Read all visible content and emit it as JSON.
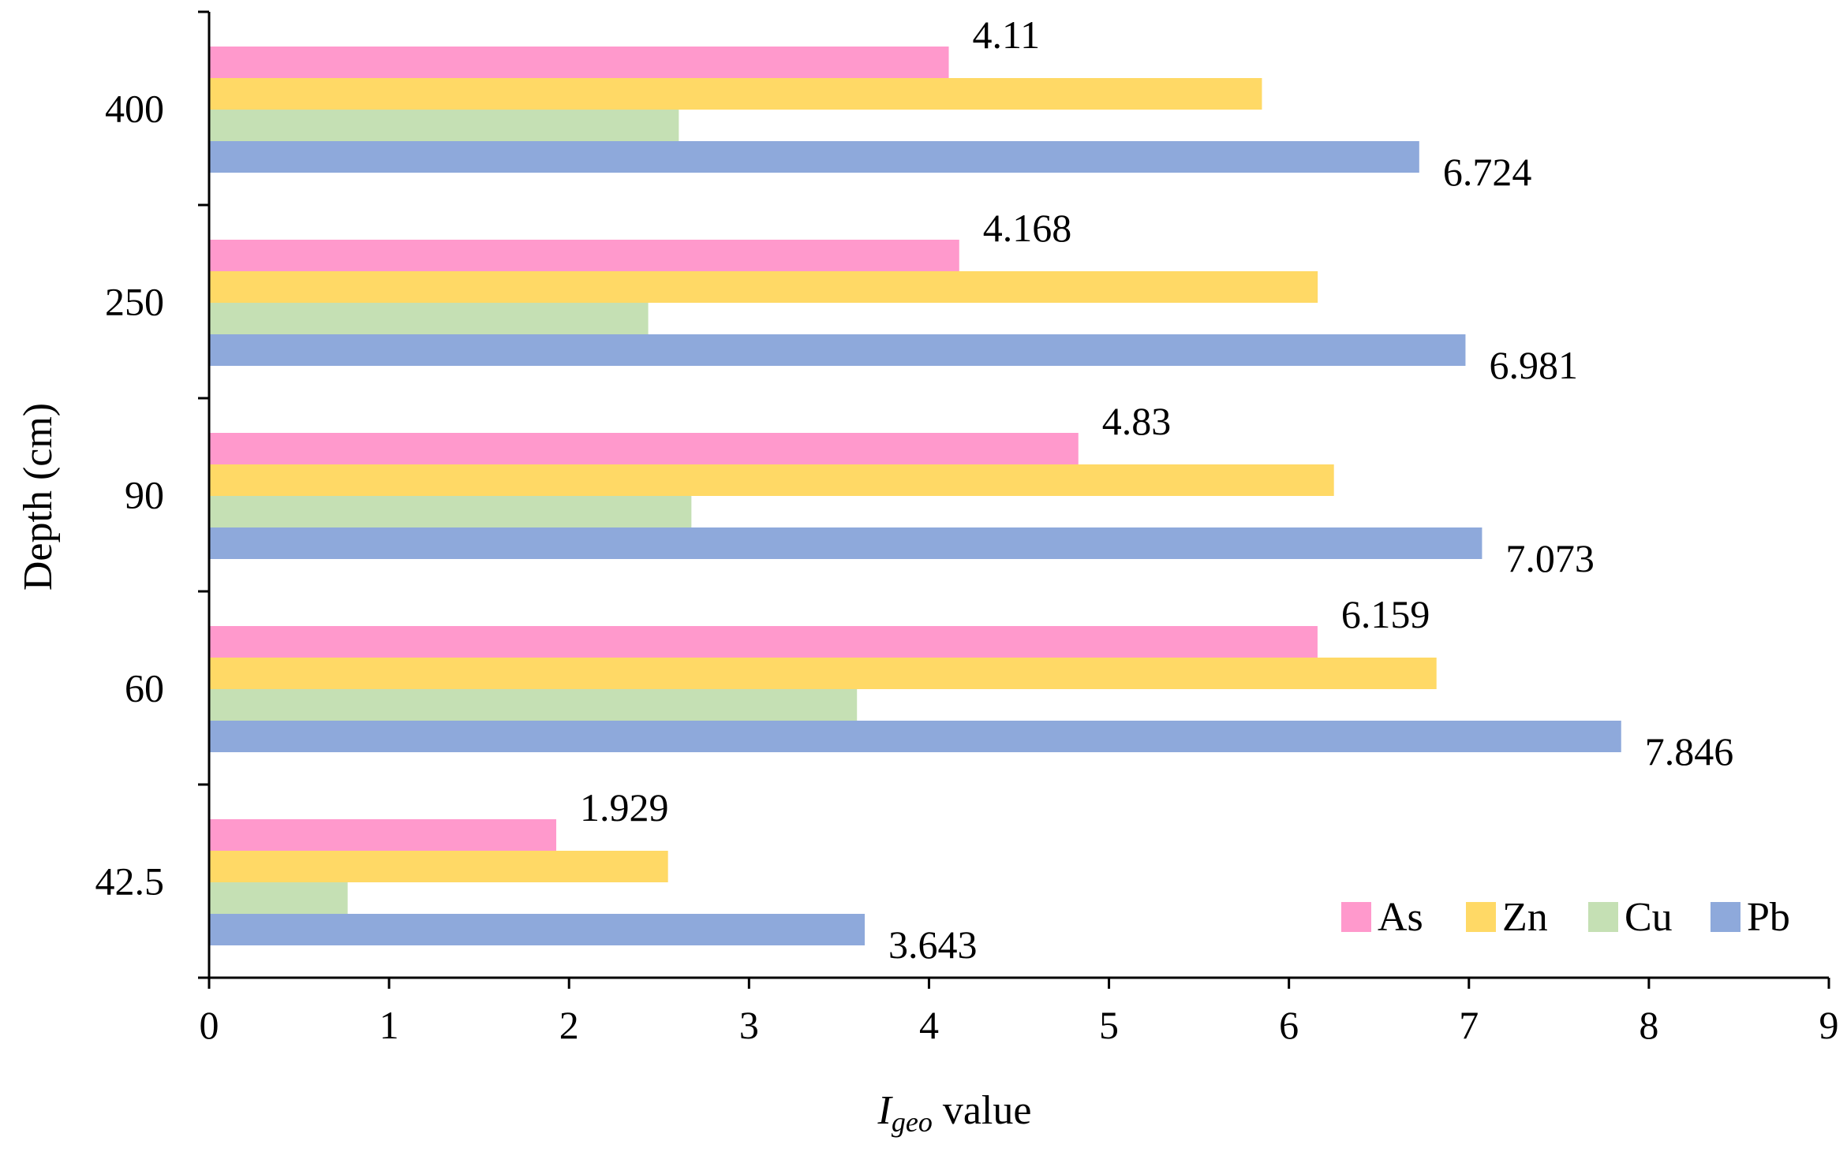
{
  "chart_data": {
    "type": "bar",
    "orientation": "horizontal",
    "title": "",
    "categories": [
      "42.5",
      "60",
      "90",
      "250",
      "400"
    ],
    "series": [
      {
        "name": "As",
        "color": "#FF99CC",
        "values": [
          1.929,
          6.159,
          4.83,
          4.168,
          4.11
        ],
        "labels": [
          "1.929",
          "6.159",
          "4.83",
          "4.168",
          "4.11"
        ]
      },
      {
        "name": "Zn",
        "color": "#FFD966",
        "values": [
          2.55,
          6.82,
          6.25,
          6.16,
          5.85
        ],
        "labels": null
      },
      {
        "name": "Cu",
        "color": "#C5E0B4",
        "values": [
          0.77,
          3.6,
          2.68,
          2.44,
          2.61
        ],
        "labels": null
      },
      {
        "name": "Pb",
        "color": "#8EA9DB",
        "values": [
          3.643,
          7.846,
          7.073,
          6.981,
          6.724
        ],
        "labels": [
          "3.643",
          "7.846",
          "7.073",
          "6.981",
          "6.724"
        ]
      }
    ],
    "xlim": [
      0,
      9
    ],
    "xticks": [
      "0",
      "1",
      "2",
      "3",
      "4",
      "5",
      "6",
      "7",
      "8",
      "9"
    ],
    "xlabel_italic": "I",
    "xlabel_sub": "geo",
    "xlabel_rest": " value",
    "ylabel": "Depth (cm)",
    "legend_position": "bottom-right",
    "grid": false
  }
}
